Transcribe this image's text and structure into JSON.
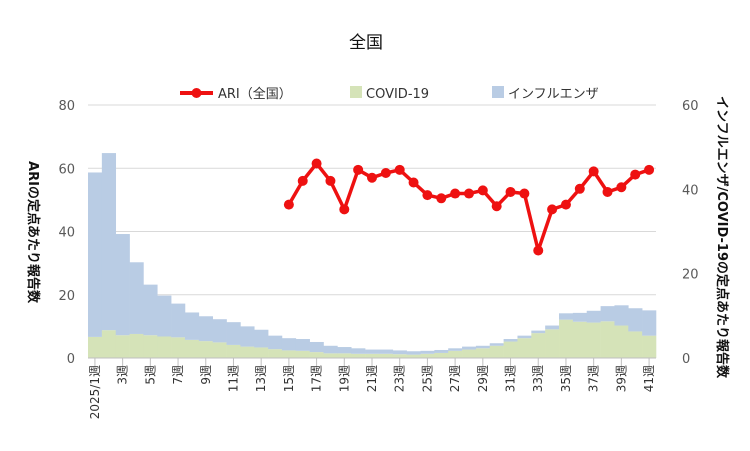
{
  "chart_data": {
    "type": "bar+line",
    "title": "全国",
    "y_left_label": "ARIの定点あたり報告数",
    "y_right_label": "インフルエンザ/COVID-19の定点あたり報告数",
    "y_left_ticks": [
      "0",
      "20",
      "40",
      "60",
      "80"
    ],
    "y_right_ticks": [
      "0",
      "20",
      "40",
      "60"
    ],
    "ylim_left": [
      0,
      80
    ],
    "ylim_right": [
      0,
      60
    ],
    "x_tick_labels": [
      "2025/1週",
      "3週",
      "5週",
      "7週",
      "9週",
      "11週",
      "13週",
      "15週",
      "17週",
      "19週",
      "21週",
      "23週",
      "25週",
      "27週",
      "29週",
      "31週",
      "33週",
      "35週",
      "37週",
      "39週",
      "41週"
    ],
    "weeks": [
      1,
      2,
      3,
      4,
      5,
      6,
      7,
      8,
      9,
      10,
      11,
      12,
      13,
      14,
      15,
      16,
      17,
      18,
      19,
      20,
      21,
      22,
      23,
      24,
      25,
      26,
      27,
      28,
      29,
      30,
      31,
      32,
      33,
      34,
      35,
      36,
      37,
      38,
      39,
      40,
      41
    ],
    "legend_position": "top",
    "series": [
      {
        "name": "ARI（全国）",
        "axis": "left",
        "kind": "line",
        "color": "#ee1111",
        "values": [
          null,
          null,
          null,
          null,
          null,
          null,
          null,
          null,
          null,
          null,
          null,
          null,
          null,
          null,
          48.5,
          56,
          61.5,
          56,
          47,
          59.5,
          57,
          58.5,
          59.5,
          55.5,
          51.5,
          50.5,
          52,
          52,
          53,
          48,
          52.5,
          52,
          34,
          47,
          48.5,
          53.5,
          59,
          52.5,
          54,
          58,
          59.5
        ]
      },
      {
        "name": "COVID-19",
        "axis": "right",
        "kind": "area",
        "color": "#d5e3b8",
        "values": [
          5,
          6.6,
          5.4,
          5.7,
          5.4,
          5.1,
          4.9,
          4.3,
          4,
          3.7,
          3.1,
          2.7,
          2.5,
          2.1,
          1.8,
          1.7,
          1.4,
          1.1,
          1.1,
          1,
          1,
          1,
          0.9,
          0.8,
          1,
          1.2,
          1.7,
          2,
          2.3,
          2.9,
          3.9,
          4.7,
          5.9,
          6.8,
          9.1,
          8.6,
          8.4,
          8.7,
          7.7,
          6.3,
          5.3
        ]
      },
      {
        "name": "インフルエンザ",
        "axis": "right",
        "kind": "area",
        "color": "#b9cce4",
        "values": [
          39,
          42,
          24,
          17,
          12,
          9.7,
          8,
          6.5,
          5.9,
          5.5,
          5.4,
          4.8,
          4.2,
          3.2,
          2.9,
          2.8,
          2.4,
          1.8,
          1.5,
          1.3,
          1,
          1,
          0.9,
          0.8,
          0.7,
          0.7,
          0.6,
          0.7,
          0.6,
          0.6,
          0.6,
          0.6,
          0.6,
          0.9,
          1.5,
          2.1,
          2.8,
          3.6,
          4.8,
          5.5,
          6
        ]
      }
    ]
  },
  "colors": {
    "ari": "#ee1111",
    "covid": "#d5e3b8",
    "flu": "#b9cce4",
    "grid": "#d9d9d9"
  }
}
